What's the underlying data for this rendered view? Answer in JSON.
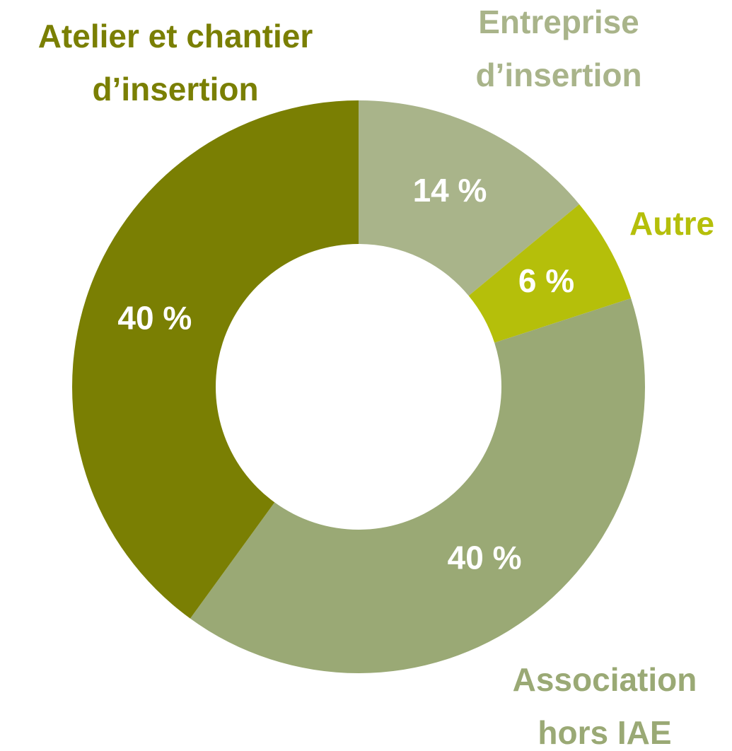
{
  "chart_data": {
    "type": "donut",
    "categories": [
      "Entreprise\nd’insertion",
      "Autre",
      "Association\nhors IAE",
      "Atelier et chantier\nd’insertion"
    ],
    "values": [
      14,
      6,
      40,
      40
    ],
    "value_labels": [
      "14 %",
      "6 %",
      "40 %",
      "40 %"
    ],
    "colors": [
      "#a9b48a",
      "#b5bf0a",
      "#9aa975",
      "#7a7f03"
    ]
  }
}
